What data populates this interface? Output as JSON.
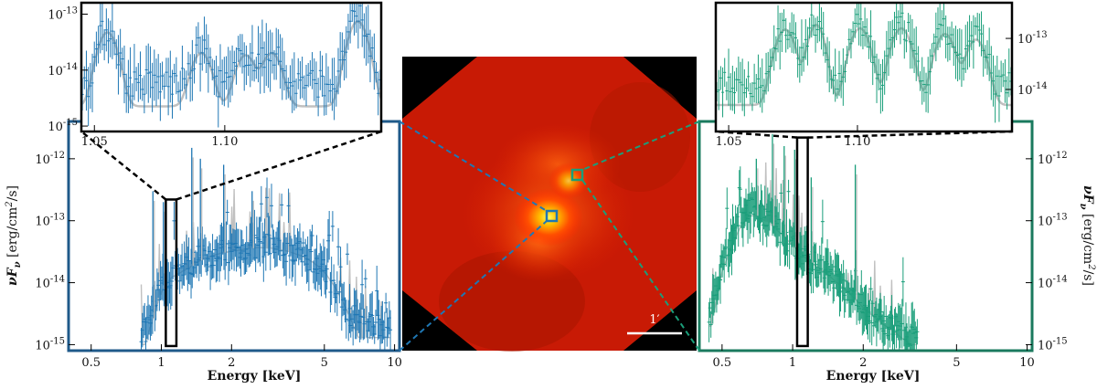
{
  "chart_data": [
    {
      "id": "left-spectrum",
      "type": "line",
      "xlabel": "Energy [keV]",
      "ylabel": "νF_ν [erg/cm²/s]",
      "xscale": "log",
      "yscale": "log",
      "xlim": [
        0.4,
        10.5
      ],
      "ylim": [
        8e-16,
        4e-12
      ],
      "x_ticks": [
        "0.5",
        "1",
        "2",
        "5",
        "10"
      ],
      "x_tick_values": [
        0.5,
        1,
        2,
        5,
        10
      ],
      "y_ticks": [
        "10-15",
        "10-14",
        "10-13",
        "10-12"
      ],
      "y_tick_values": [
        1e-15,
        1e-14,
        1e-13,
        1e-12
      ],
      "series": [
        {
          "color": "#1f77b4",
          "x": [
            0.85,
            0.9,
            0.95,
            1.0,
            1.05,
            1.1,
            1.2,
            1.3,
            1.4,
            1.5,
            1.7,
            1.9,
            2.1,
            2.3,
            2.5,
            2.8,
            3.0,
            3.3,
            3.6,
            4.0,
            4.5,
            5.0,
            5.5,
            6.0,
            6.5,
            7.0,
            8.0,
            9.0
          ],
          "y": [
            1.5e-15,
            2.5e-15,
            5e-15,
            8e-15,
            1.1e-14,
            1.4e-14,
            1.6e-14,
            1.8e-14,
            2.2e-14,
            2.6e-14,
            3e-14,
            3.2e-14,
            3.4e-14,
            3.6e-14,
            3.8e-14,
            4e-14,
            3.8e-14,
            3.5e-14,
            3.3e-14,
            2.9e-14,
            2.2e-14,
            1.5e-14,
            9e-15,
            5e-15,
            3e-15,
            2.5e-15,
            2.2e-15,
            2e-15
          ]
        },
        {
          "color": "#c0c0c0",
          "x": [
            0.85,
            0.9,
            0.95,
            1.0,
            1.1,
            1.3,
            1.5,
            1.8,
            2.2,
            2.6,
            3.0,
            3.5,
            4.0,
            4.5,
            5.0,
            5.5,
            6.0,
            6.5,
            7.0
          ],
          "y": [
            1e-15,
            2e-15,
            4e-15,
            7e-15,
            1.2e-14,
            1.7e-14,
            2.4e-14,
            3e-14,
            3.4e-14,
            3.7e-14,
            3.6e-14,
            3.2e-14,
            2.7e-14,
            2.1e-14,
            1.5e-14,
            9e-15,
            5e-15,
            2.5e-15,
            1.3e-15
          ]
        }
      ],
      "lines": [
        {
          "x": 1.35,
          "y": 1.5e-12
        },
        {
          "x": 1.47,
          "y": 1e-12
        },
        {
          "x": 1.85,
          "y": 8e-13
        },
        {
          "x": 2.45,
          "y": 3e-13
        },
        {
          "x": 1.02,
          "y": 2e-13
        },
        {
          "x": 0.92,
          "y": 3e-13
        }
      ],
      "inset": {
        "xlim": [
          1.045,
          1.16
        ],
        "ylim": [
          8e-16,
          1.6e-13
        ],
        "x_ticks": [
          "1.05",
          "1.10"
        ],
        "x_tick_values": [
          1.05,
          1.1
        ],
        "y_ticks": [
          "10-15",
          "10-14",
          "10-13"
        ],
        "y_tick_values": [
          1e-15,
          1e-14,
          1e-13
        ],
        "peaks": [
          {
            "x": 1.055,
            "y": 5e-14,
            "w": 0.003
          },
          {
            "x": 1.091,
            "y": 2e-14,
            "w": 0.003
          },
          {
            "x": 1.108,
            "y": 1.8e-14,
            "w": 0.003
          },
          {
            "x": 1.118,
            "y": 2e-14,
            "w": 0.003
          },
          {
            "x": 1.151,
            "y": 8e-14,
            "w": 0.003
          }
        ],
        "base": 1e-14
      }
    },
    {
      "id": "right-spectrum",
      "type": "line",
      "xlabel": "Energy [keV]",
      "ylabel": "νF_ν [erg/cm²/s]",
      "xscale": "log",
      "yscale": "log",
      "xlim": [
        0.4,
        10.5
      ],
      "ylim": [
        8e-16,
        4e-12
      ],
      "x_ticks": [
        "0.5",
        "1",
        "2",
        "5",
        "10"
      ],
      "x_tick_values": [
        0.5,
        1,
        2,
        5,
        10
      ],
      "y_ticks": [
        "10-15",
        "10-14",
        "10-13",
        "10-12"
      ],
      "y_tick_values": [
        1e-15,
        1e-14,
        1e-13,
        1e-12
      ],
      "series": [
        {
          "color": "#1a9e7a",
          "x": [
            0.45,
            0.5,
            0.55,
            0.6,
            0.65,
            0.7,
            0.75,
            0.8,
            0.85,
            0.9,
            0.95,
            1.0,
            1.1,
            1.2,
            1.3,
            1.4,
            1.5,
            1.6,
            1.8,
            2.0,
            2.2,
            2.4,
            2.6,
            2.8,
            3.0,
            3.3
          ],
          "y": [
            3e-15,
            2e-14,
            5e-14,
            1e-13,
            1.5e-13,
            1.5e-13,
            1.2e-13,
            1e-13,
            8e-14,
            6e-14,
            5e-14,
            4e-14,
            3e-14,
            2.2e-14,
            1.8e-14,
            1.5e-14,
            1.2e-14,
            1e-14,
            6e-15,
            4e-15,
            3e-15,
            2.5e-15,
            2e-15,
            1.8e-15,
            1.5e-15,
            1.2e-15
          ]
        },
        {
          "color": "#c0c0c0",
          "x": [
            0.45,
            0.5,
            0.55,
            0.6,
            0.65,
            0.7,
            0.8,
            0.9,
            1.0,
            1.1,
            1.2,
            1.4,
            1.6,
            1.8,
            2.0,
            2.3,
            2.6,
            2.9,
            3.2
          ],
          "y": [
            2e-15,
            1.5e-14,
            4e-14,
            8e-14,
            1.2e-13,
            1.2e-13,
            9e-14,
            6e-14,
            4e-14,
            2.8e-14,
            2.1e-14,
            1.4e-14,
            9e-15,
            6e-15,
            4e-15,
            2.5e-15,
            1.8e-15,
            1.3e-15,
            1e-15
          ]
        }
      ],
      "lines": [
        {
          "x": 0.82,
          "y": 2.5e-12
        },
        {
          "x": 0.92,
          "y": 1.6e-12
        },
        {
          "x": 1.02,
          "y": 1.4e-12
        },
        {
          "x": 0.7,
          "y": 1e-12
        },
        {
          "x": 1.85,
          "y": 8e-13
        },
        {
          "x": 1.2,
          "y": 5e-13
        }
      ],
      "inset": {
        "xlim": [
          1.045,
          1.16
        ],
        "ylim": [
          1.5e-15,
          5e-13
        ],
        "x_ticks": [
          "1.05",
          "1.10"
        ],
        "x_tick_values": [
          1.05,
          1.1
        ],
        "y_ticks": [
          "10-14",
          "10-13"
        ],
        "y_tick_values": [
          1e-14,
          1e-13
        ],
        "peaks": [
          {
            "x": 1.072,
            "y": 1.6e-13,
            "w": 0.003
          },
          {
            "x": 1.084,
            "y": 2e-13,
            "w": 0.0025
          },
          {
            "x": 1.101,
            "y": 1.7e-13,
            "w": 0.003
          },
          {
            "x": 1.117,
            "y": 1.7e-13,
            "w": 0.003
          },
          {
            "x": 1.134,
            "y": 1.3e-13,
            "w": 0.003
          },
          {
            "x": 1.146,
            "y": 1e-13,
            "w": 0.003
          }
        ],
        "base": 2.2e-14
      }
    }
  ],
  "image": {
    "scale_label": "1′",
    "left_box_color": "#1f77b4",
    "right_box_color": "#1a9e7a"
  },
  "colors": {
    "left_frame": "#1f5a8a",
    "right_frame": "#1a7a5e",
    "selection_box": "#000000",
    "model": "#c0c0c0"
  }
}
